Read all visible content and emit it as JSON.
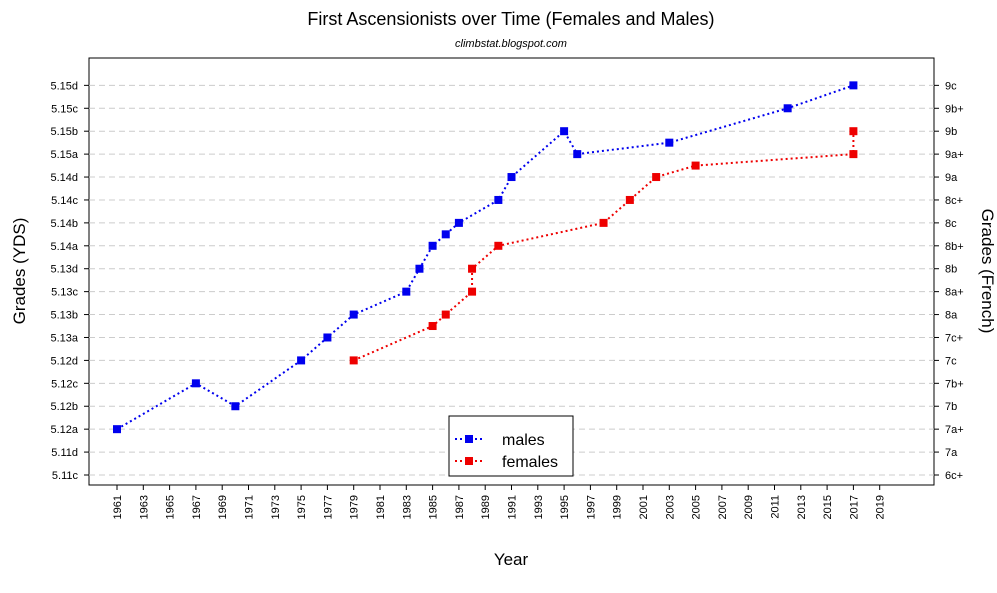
{
  "chart_data": {
    "type": "line",
    "title": "First Ascensionists over Time (Females and Males)",
    "subtitle": "climbstat.blogspot.com",
    "xlabel": "Year",
    "ylabel": "Grades (YDS)",
    "ylabel_right": "Grades (French)",
    "x_ticks": [
      1961,
      1963,
      1965,
      1967,
      1969,
      1971,
      1973,
      1975,
      1977,
      1979,
      1981,
      1983,
      1985,
      1987,
      1989,
      1991,
      1993,
      1995,
      1997,
      1999,
      2001,
      2003,
      2005,
      2007,
      2009,
      2011,
      2013,
      2015,
      2017,
      2019
    ],
    "xlim": [
      1961,
      2019
    ],
    "y_categories_left": [
      "5.11c",
      "5.11d",
      "5.12a",
      "5.12b",
      "5.12c",
      "5.12d",
      "5.13a",
      "5.13b",
      "5.13c",
      "5.13d",
      "5.14a",
      "5.14b",
      "5.14c",
      "5.14d",
      "5.15a",
      "5.15b",
      "5.15c",
      "5.15d"
    ],
    "y_categories_right": [
      "6c+",
      "7a",
      "7a+",
      "7b",
      "7b+",
      "7c",
      "7c+",
      "8a",
      "8a+",
      "8b",
      "8b+",
      "8c",
      "8c+",
      "9a",
      "9a+",
      "9b",
      "9b+",
      "9c"
    ],
    "grid": "horizontal dashed",
    "legend_position": "bottom-center",
    "series": [
      {
        "name": "males",
        "color": "#0000ee",
        "x": [
          1961,
          1967,
          1970,
          1975,
          1977,
          1979,
          1983,
          1984,
          1985,
          1986,
          1987,
          1990,
          1991,
          1995,
          1996,
          2003,
          2012,
          2017
        ],
        "y": [
          "5.12a",
          "5.12c",
          "5.12b",
          "5.12d",
          "5.13a",
          "5.13b",
          "5.13c",
          "5.13d",
          "5.14a",
          "5.14a/b",
          "5.14b",
          "5.14c",
          "5.14d",
          "5.15b",
          "5.15a",
          "5.15a/b",
          "5.15c",
          "5.15d"
        ],
        "y_index": [
          2,
          4,
          3,
          5,
          6,
          7,
          8,
          9,
          10,
          10.5,
          11,
          12,
          13,
          15,
          14,
          14.5,
          16,
          17
        ]
      },
      {
        "name": "females",
        "color": "#ee0000",
        "x": [
          1979,
          1985,
          1986,
          1988,
          1988,
          1990,
          1998,
          2000,
          2002,
          2005,
          2017,
          2017
        ],
        "y": [
          "5.12d",
          "5.13a/b",
          "5.13b",
          "5.13c",
          "5.13d",
          "5.14a",
          "5.14b",
          "5.14c",
          "5.14d",
          "5.14d/5.15a",
          "5.15a",
          "5.15b"
        ],
        "y_index": [
          5,
          6.5,
          7,
          8,
          9,
          10,
          11,
          12,
          13,
          13.5,
          14,
          15
        ]
      }
    ]
  }
}
